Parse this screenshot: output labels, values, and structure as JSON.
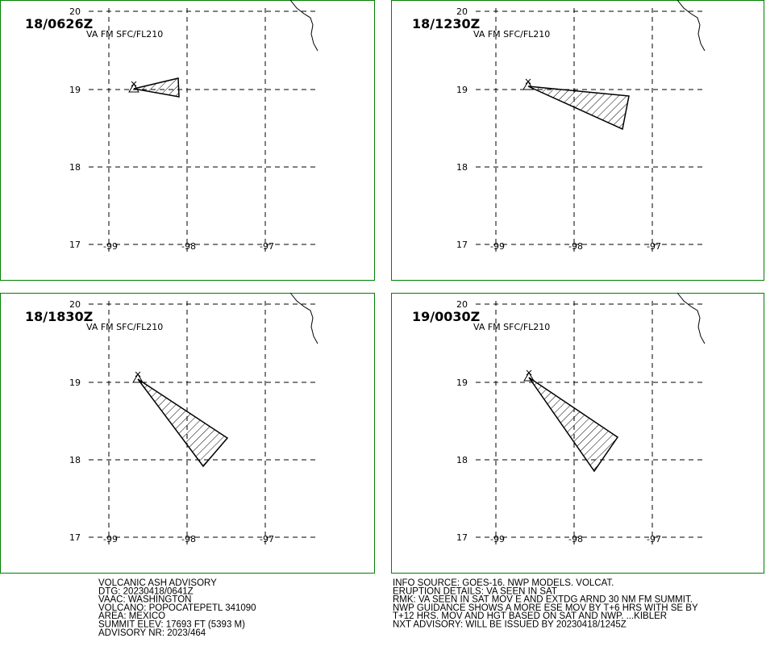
{
  "grid": {
    "lat_labels": [
      "20",
      "19",
      "18",
      "17"
    ],
    "lon_labels": [
      "-99",
      "-98",
      "-97"
    ]
  },
  "panels": [
    {
      "time": "18/0626Z",
      "level": "VA FM SFC/FL210"
    },
    {
      "time": "18/1230Z",
      "level": "VA FM SFC/FL210"
    },
    {
      "time": "18/1830Z",
      "level": "VA FM SFC/FL210"
    },
    {
      "time": "19/0030Z",
      "level": "VA FM SFC/FL210"
    }
  ],
  "advisory": {
    "left": [
      "VOLCANIC ASH ADVISORY",
      "DTG: 20230418/0641Z",
      "VAAC: WASHINGTON",
      "VOLCANO: POPOCATEPETL 341090",
      "AREA: MEXICO",
      "SUMMIT ELEV: 17693 FT (5393 M)",
      "ADVISORY NR: 2023/464"
    ],
    "right": [
      "INFO SOURCE: GOES-16. NWP MODELS. VOLCAT.",
      "ERUPTION DETAILS: VA SEEN IN SAT",
      "RMK: VA SEEN IN SAT MOV E AND EXTDG ARND 30 NM FM SUMMIT.",
      "NWP GUIDANCE SHOWS A MORE ESE MOV BY T+6 HRS WITH SE BY",
      "T+12 HRS. MOV AND HGT BASED ON SAT AND NWP. ...KIBLER",
      "NXT ADVISORY: WILL BE ISSUED BY 20230418/1245Z"
    ]
  }
}
